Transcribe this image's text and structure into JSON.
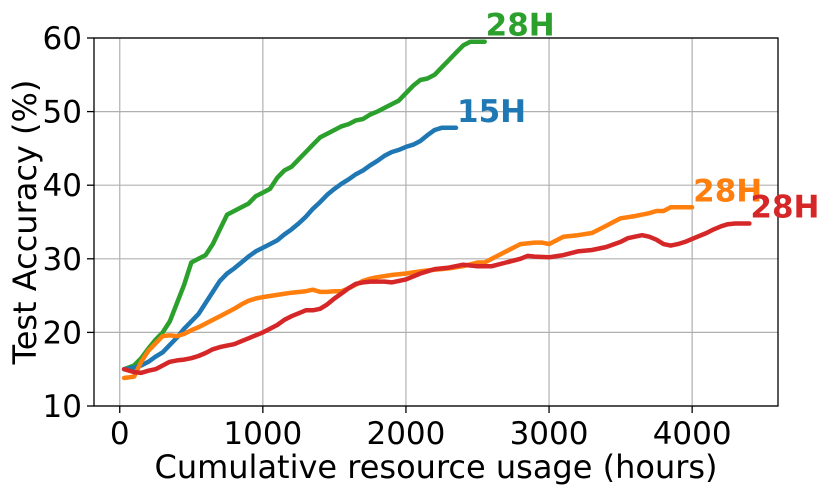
{
  "chart_data": {
    "type": "line",
    "title": "",
    "xlabel": "Cumulative resource usage (hours)",
    "ylabel": "Test Accuracy (%)",
    "xlim": [
      -180,
      4600
    ],
    "ylim": [
      10,
      60
    ],
    "xticks": [
      0,
      1000,
      2000,
      3000,
      4000
    ],
    "yticks": [
      10,
      20,
      30,
      40,
      50,
      60
    ],
    "grid": true,
    "series": [
      {
        "color": "#2ca02c",
        "end_label": "28H",
        "points": [
          [
            30,
            15
          ],
          [
            100,
            15.5
          ],
          [
            150,
            16.5
          ],
          [
            200,
            17.8
          ],
          [
            250,
            19
          ],
          [
            300,
            20
          ],
          [
            350,
            21.5
          ],
          [
            400,
            24
          ],
          [
            450,
            26.5
          ],
          [
            500,
            29.5
          ],
          [
            550,
            30
          ],
          [
            600,
            30.5
          ],
          [
            650,
            32
          ],
          [
            700,
            34
          ],
          [
            750,
            36
          ],
          [
            800,
            36.5
          ],
          [
            850,
            37
          ],
          [
            900,
            37.5
          ],
          [
            950,
            38.5
          ],
          [
            1000,
            39
          ],
          [
            1050,
            39.5
          ],
          [
            1100,
            41
          ],
          [
            1150,
            42
          ],
          [
            1200,
            42.5
          ],
          [
            1250,
            43.5
          ],
          [
            1300,
            44.5
          ],
          [
            1350,
            45.5
          ],
          [
            1400,
            46.5
          ],
          [
            1450,
            47
          ],
          [
            1500,
            47.5
          ],
          [
            1550,
            48
          ],
          [
            1600,
            48.3
          ],
          [
            1650,
            48.8
          ],
          [
            1700,
            49
          ],
          [
            1750,
            49.6
          ],
          [
            1800,
            50
          ],
          [
            1850,
            50.5
          ],
          [
            1900,
            51
          ],
          [
            1950,
            51.5
          ],
          [
            2000,
            52.5
          ],
          [
            2050,
            53.5
          ],
          [
            2100,
            54.3
          ],
          [
            2150,
            54.5
          ],
          [
            2200,
            55
          ],
          [
            2250,
            56
          ],
          [
            2300,
            57
          ],
          [
            2350,
            58
          ],
          [
            2400,
            59
          ],
          [
            2450,
            59.5
          ],
          [
            2500,
            59.5
          ],
          [
            2550,
            59.5
          ]
        ]
      },
      {
        "color": "#1f77b4",
        "end_label": "15H",
        "points": [
          [
            30,
            15
          ],
          [
            100,
            15.2
          ],
          [
            150,
            15.5
          ],
          [
            200,
            16
          ],
          [
            250,
            16.7
          ],
          [
            300,
            17.3
          ],
          [
            350,
            18.3
          ],
          [
            400,
            19.3
          ],
          [
            450,
            20.5
          ],
          [
            500,
            21.5
          ],
          [
            550,
            22.5
          ],
          [
            600,
            24
          ],
          [
            650,
            25.5
          ],
          [
            700,
            27
          ],
          [
            750,
            28
          ],
          [
            800,
            28.7
          ],
          [
            850,
            29.5
          ],
          [
            900,
            30.3
          ],
          [
            950,
            31
          ],
          [
            1000,
            31.5
          ],
          [
            1050,
            32
          ],
          [
            1100,
            32.5
          ],
          [
            1150,
            33.3
          ],
          [
            1200,
            34
          ],
          [
            1250,
            34.8
          ],
          [
            1300,
            35.7
          ],
          [
            1350,
            36.8
          ],
          [
            1400,
            37.7
          ],
          [
            1450,
            38.7
          ],
          [
            1500,
            39.5
          ],
          [
            1550,
            40.2
          ],
          [
            1600,
            40.8
          ],
          [
            1650,
            41.5
          ],
          [
            1700,
            42
          ],
          [
            1750,
            42.7
          ],
          [
            1800,
            43.3
          ],
          [
            1850,
            44
          ],
          [
            1900,
            44.5
          ],
          [
            1950,
            44.8
          ],
          [
            2000,
            45.2
          ],
          [
            2050,
            45.5
          ],
          [
            2100,
            46
          ],
          [
            2150,
            46.8
          ],
          [
            2200,
            47.5
          ],
          [
            2250,
            47.8
          ],
          [
            2300,
            47.8
          ],
          [
            2350,
            47.8
          ]
        ]
      },
      {
        "color": "#ff7f0e",
        "end_label": "28H",
        "points": [
          [
            30,
            13.8
          ],
          [
            100,
            14
          ],
          [
            150,
            16
          ],
          [
            200,
            17.5
          ],
          [
            250,
            18.5
          ],
          [
            300,
            19.5
          ],
          [
            350,
            19.6
          ],
          [
            400,
            19.5
          ],
          [
            450,
            19.8
          ],
          [
            500,
            20.3
          ],
          [
            550,
            20.7
          ],
          [
            600,
            21.2
          ],
          [
            650,
            21.7
          ],
          [
            700,
            22.2
          ],
          [
            750,
            22.7
          ],
          [
            800,
            23.2
          ],
          [
            850,
            23.8
          ],
          [
            900,
            24.3
          ],
          [
            950,
            24.6
          ],
          [
            1000,
            24.8
          ],
          [
            1100,
            25.1
          ],
          [
            1200,
            25.4
          ],
          [
            1300,
            25.6
          ],
          [
            1350,
            25.8
          ],
          [
            1400,
            25.5
          ],
          [
            1450,
            25.5
          ],
          [
            1500,
            25.6
          ],
          [
            1550,
            25.6
          ],
          [
            1600,
            26
          ],
          [
            1650,
            26.5
          ],
          [
            1700,
            27
          ],
          [
            1750,
            27.3
          ],
          [
            1800,
            27.5
          ],
          [
            1900,
            27.8
          ],
          [
            2000,
            28
          ],
          [
            2100,
            28.3
          ],
          [
            2200,
            28.5
          ],
          [
            2300,
            28.7
          ],
          [
            2400,
            29
          ],
          [
            2500,
            29.5
          ],
          [
            2550,
            29.5
          ],
          [
            2600,
            30
          ],
          [
            2700,
            31
          ],
          [
            2800,
            32
          ],
          [
            2900,
            32.2
          ],
          [
            2950,
            32.2
          ],
          [
            3000,
            32
          ],
          [
            3100,
            33
          ],
          [
            3200,
            33.2
          ],
          [
            3300,
            33.5
          ],
          [
            3400,
            34.5
          ],
          [
            3450,
            35
          ],
          [
            3500,
            35.5
          ],
          [
            3600,
            35.8
          ],
          [
            3700,
            36.2
          ],
          [
            3750,
            36.5
          ],
          [
            3800,
            36.5
          ],
          [
            3850,
            37
          ],
          [
            3950,
            37
          ],
          [
            4000,
            37
          ]
        ]
      },
      {
        "color": "#d62728",
        "end_label": "28H",
        "points": [
          [
            30,
            15
          ],
          [
            100,
            14.6
          ],
          [
            150,
            14.5
          ],
          [
            200,
            14.8
          ],
          [
            250,
            15
          ],
          [
            300,
            15.5
          ],
          [
            350,
            16
          ],
          [
            400,
            16.2
          ],
          [
            450,
            16.3
          ],
          [
            500,
            16.5
          ],
          [
            550,
            16.8
          ],
          [
            600,
            17.2
          ],
          [
            650,
            17.7
          ],
          [
            700,
            18
          ],
          [
            750,
            18.2
          ],
          [
            800,
            18.4
          ],
          [
            850,
            18.8
          ],
          [
            900,
            19.2
          ],
          [
            950,
            19.6
          ],
          [
            1000,
            20
          ],
          [
            1050,
            20.5
          ],
          [
            1100,
            21
          ],
          [
            1150,
            21.7
          ],
          [
            1200,
            22.2
          ],
          [
            1250,
            22.6
          ],
          [
            1300,
            23
          ],
          [
            1350,
            23
          ],
          [
            1400,
            23.2
          ],
          [
            1450,
            23.8
          ],
          [
            1500,
            24.6
          ],
          [
            1550,
            25.3
          ],
          [
            1600,
            26
          ],
          [
            1650,
            26.6
          ],
          [
            1700,
            26.8
          ],
          [
            1750,
            26.9
          ],
          [
            1800,
            26.9
          ],
          [
            1850,
            26.9
          ],
          [
            1900,
            26.8
          ],
          [
            1950,
            27
          ],
          [
            2000,
            27.2
          ],
          [
            2050,
            27.6
          ],
          [
            2100,
            28
          ],
          [
            2150,
            28.3
          ],
          [
            2200,
            28.6
          ],
          [
            2300,
            28.8
          ],
          [
            2400,
            29.2
          ],
          [
            2500,
            29
          ],
          [
            2600,
            29
          ],
          [
            2700,
            29.5
          ],
          [
            2800,
            30
          ],
          [
            2850,
            30.4
          ],
          [
            2900,
            30.3
          ],
          [
            3000,
            30.2
          ],
          [
            3100,
            30.5
          ],
          [
            3200,
            31
          ],
          [
            3300,
            31.2
          ],
          [
            3400,
            31.6
          ],
          [
            3500,
            32.3
          ],
          [
            3550,
            32.8
          ],
          [
            3600,
            33
          ],
          [
            3650,
            33.2
          ],
          [
            3700,
            33
          ],
          [
            3750,
            32.6
          ],
          [
            3800,
            32
          ],
          [
            3850,
            31.8
          ],
          [
            3900,
            32
          ],
          [
            3950,
            32.3
          ],
          [
            4000,
            32.7
          ],
          [
            4100,
            33.5
          ],
          [
            4150,
            34
          ],
          [
            4200,
            34.4
          ],
          [
            4250,
            34.7
          ],
          [
            4300,
            34.8
          ],
          [
            4400,
            34.8
          ]
        ]
      }
    ]
  }
}
